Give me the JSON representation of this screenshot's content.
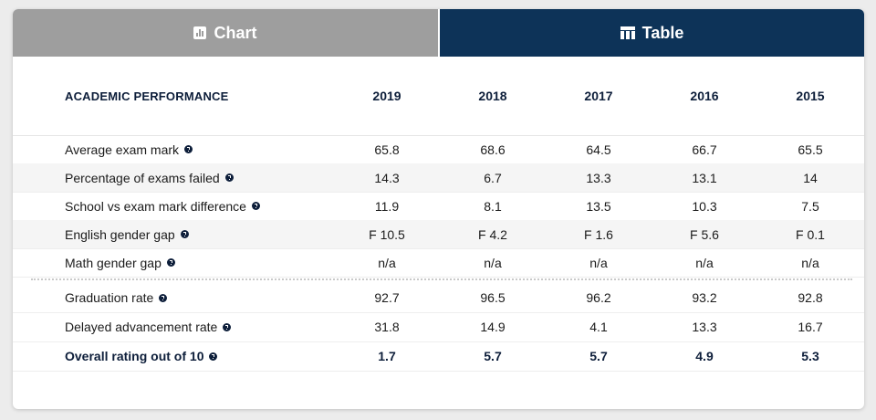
{
  "tabs": [
    "Chart",
    "Table"
  ],
  "table": {
    "header": "ACADEMIC PERFORMANCE",
    "years": [
      "2019",
      "2018",
      "2017",
      "2016",
      "2015"
    ],
    "sections": [
      {
        "rows": [
          {
            "label": "Average exam mark",
            "values": [
              "65.8",
              "68.6",
              "64.5",
              "66.7",
              "65.5"
            ]
          },
          {
            "label": "Percentage of exams failed",
            "values": [
              "14.3",
              "6.7",
              "13.3",
              "13.1",
              "14"
            ]
          },
          {
            "label": "School vs exam mark difference",
            "values": [
              "11.9",
              "8.1",
              "13.5",
              "10.3",
              "7.5"
            ]
          },
          {
            "label": "English gender gap",
            "values": [
              "F 10.5",
              "F 4.2",
              "F 1.6",
              "F 5.6",
              "F 0.1"
            ]
          },
          {
            "label": "Math gender gap",
            "values": [
              "n/a",
              "n/a",
              "n/a",
              "n/a",
              "n/a"
            ]
          }
        ]
      },
      {
        "rows": [
          {
            "label": "Graduation rate",
            "values": [
              "92.7",
              "96.5",
              "96.2",
              "93.2",
              "92.8"
            ]
          },
          {
            "label": "Delayed advancement rate",
            "values": [
              "31.8",
              "14.9",
              "4.1",
              "13.3",
              "16.7"
            ]
          },
          {
            "label": "Overall rating out of 10",
            "values": [
              "1.7",
              "5.7",
              "5.7",
              "4.9",
              "5.3"
            ]
          }
        ]
      }
    ]
  }
}
